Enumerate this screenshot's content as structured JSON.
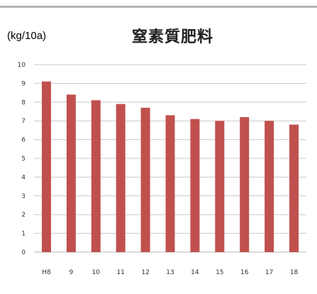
{
  "chart_data": {
    "type": "bar",
    "title": "窒素質肥料",
    "ylabel": "(kg/10a)",
    "xlabel": "",
    "categories": [
      "H8",
      "9",
      "10",
      "11",
      "12",
      "13",
      "14",
      "15",
      "16",
      "17",
      "18"
    ],
    "values": [
      9.1,
      8.4,
      8.1,
      7.9,
      7.7,
      7.3,
      7.1,
      7.0,
      7.2,
      7.0,
      6.8
    ],
    "yticks": [
      "0",
      "1",
      "2",
      "3",
      "4",
      "5",
      "6",
      "7",
      "8",
      "9",
      "10"
    ],
    "ylim": [
      0,
      10
    ],
    "grid": true,
    "legend": "none",
    "bar_color": "#c0504d",
    "grid_color": "#c8c8c8"
  }
}
